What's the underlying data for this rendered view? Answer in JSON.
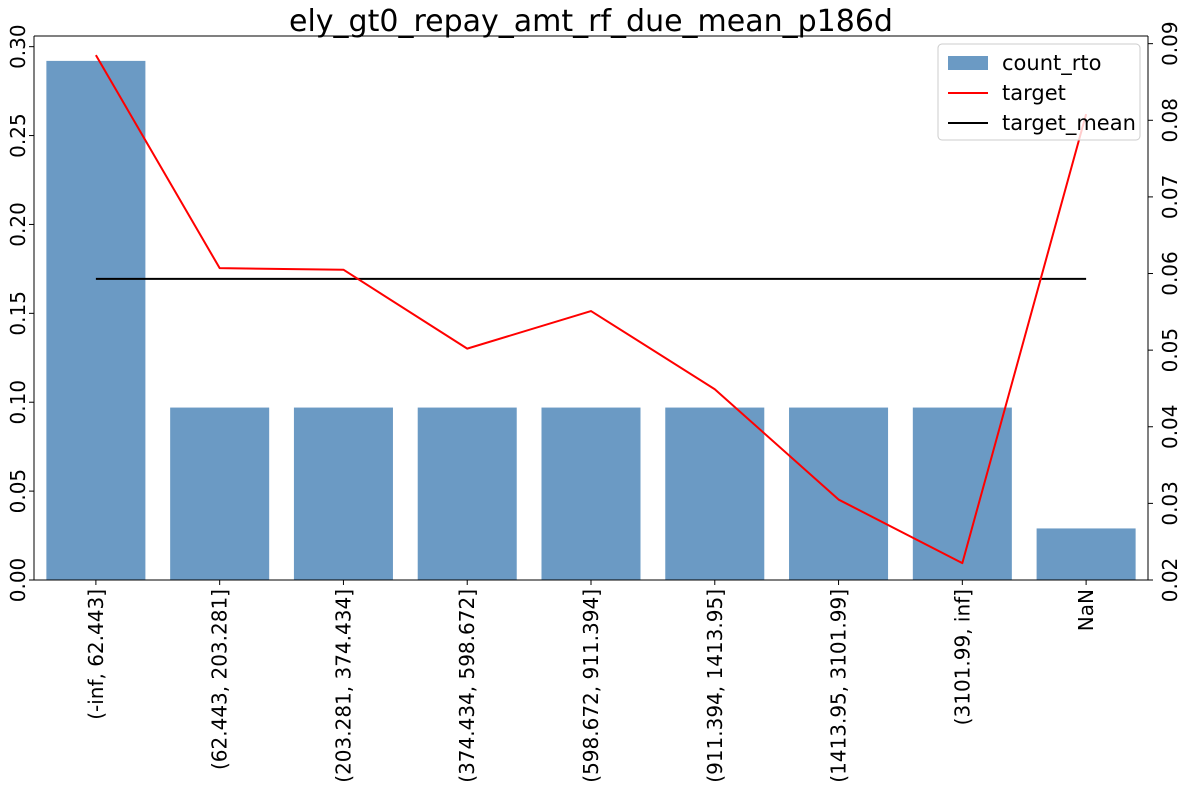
{
  "chart_data": {
    "type": "bar",
    "title": "ely_gt0_repay_amt_rf_due_mean_p186d",
    "categories": [
      "(-inf, 62.443]",
      "(62.443, 203.281]",
      "(203.281, 374.434]",
      "(374.434, 598.672]",
      "(598.672, 911.394]",
      "(911.394, 1413.95]",
      "(1413.95, 3101.99]",
      "(3101.99, inf]",
      "NaN"
    ],
    "series": [
      {
        "name": "count_rto",
        "type": "bar",
        "axis": "left",
        "color": "#6b9ac4",
        "values": [
          0.292,
          0.097,
          0.097,
          0.097,
          0.097,
          0.097,
          0.097,
          0.097,
          0.029
        ]
      },
      {
        "name": "target",
        "type": "line",
        "axis": "right",
        "color": "#ff0000",
        "values": [
          0.0885,
          0.0607,
          0.0605,
          0.0502,
          0.0551,
          0.0449,
          0.0305,
          0.0222,
          0.0808
        ]
      },
      {
        "name": "target_mean",
        "type": "line",
        "axis": "right",
        "color": "#000000",
        "values": [
          0.0593,
          0.0593,
          0.0593,
          0.0593,
          0.0593,
          0.0593,
          0.0593,
          0.0593,
          0.0593
        ]
      }
    ],
    "y_left": {
      "ylim": [
        0,
        0.306
      ],
      "ticks": [
        0.0,
        0.05,
        0.1,
        0.15,
        0.2,
        0.25,
        0.3
      ],
      "tick_labels": [
        "0.00",
        "0.05",
        "0.10",
        "0.15",
        "0.20",
        "0.25",
        "0.30"
      ]
    },
    "y_right": {
      "ylim": [
        0.02,
        0.091
      ],
      "ticks": [
        0.02,
        0.03,
        0.04,
        0.05,
        0.06,
        0.07,
        0.08,
        0.09
      ],
      "tick_labels": [
        "0.02",
        "0.03",
        "0.04",
        "0.05",
        "0.06",
        "0.07",
        "0.08",
        "0.09"
      ]
    },
    "legend": {
      "placement": "top-right",
      "entries": [
        "count_rto",
        "target",
        "target_mean"
      ]
    },
    "grid": false
  }
}
